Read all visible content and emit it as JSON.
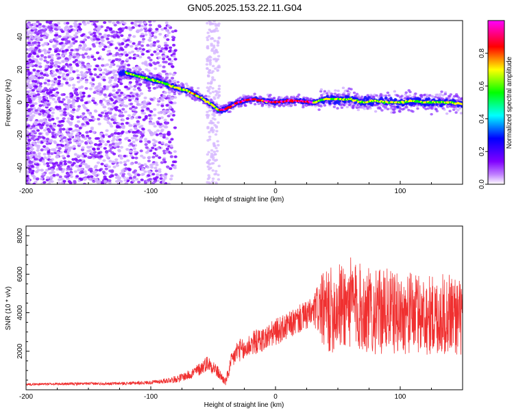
{
  "title": "GN05.2025.153.22.11.G04",
  "colors": {
    "snr_line": "#f03030",
    "axis": "#000000",
    "background": "#ffffff"
  },
  "chart_data": [
    {
      "type": "heatmap",
      "xlabel": "Height of straight line (km)",
      "ylabel": "Frequency (Hz)",
      "xlim": [
        -200,
        150
      ],
      "ylim": [
        -50,
        50
      ],
      "xticks": [
        -200,
        -100,
        0,
        100
      ],
      "yticks": [
        -40,
        -20,
        0,
        20,
        40
      ],
      "colorbar": {
        "label": "Normalized spectral amplitude",
        "range": [
          0,
          1
        ],
        "ticks": [
          "0.0",
          "0.2",
          "0.4",
          "0.6",
          "0.8"
        ],
        "colormap": [
          "#ffffff",
          "#8000ff",
          "#0000ff",
          "#00ffff",
          "#00ff00",
          "#ffff00",
          "#ff0000",
          "#ff00ff"
        ]
      },
      "ridge": {
        "x": [
          -120,
          -110,
          -100,
          -90,
          -80,
          -70,
          -60,
          -50,
          -45,
          -40,
          -30,
          -20,
          -10,
          0,
          10,
          20,
          30,
          40,
          50,
          60,
          70,
          80,
          90,
          100,
          110,
          120,
          130,
          140,
          150
        ],
        "y": [
          18,
          16,
          14,
          12,
          9,
          7,
          3,
          -2,
          -5,
          -4,
          0,
          2,
          1,
          0,
          1,
          1,
          0,
          2,
          2,
          2,
          0,
          1,
          0,
          0,
          1,
          0,
          0,
          0,
          -1
        ]
      }
    },
    {
      "type": "line",
      "xlabel": "Height of straight line (km)",
      "ylabel": "SNR (10 * v/v)",
      "xlim": [
        -200,
        150
      ],
      "ylim": [
        0,
        8500
      ],
      "xticks": [
        -200,
        -100,
        0,
        100
      ],
      "yticks": [
        2000,
        4000,
        6000,
        8000
      ],
      "series": [
        {
          "x": [
            -200,
            -180,
            -160,
            -140,
            -120,
            -100,
            -90,
            -80,
            -70,
            -60,
            -55,
            -50,
            -45,
            -40,
            -35,
            -30,
            -25,
            -20,
            -10,
            0,
            10,
            20,
            30,
            35,
            40,
            50,
            60,
            70,
            80,
            90,
            100,
            110,
            120,
            130,
            140,
            150
          ],
          "y": [
            280,
            300,
            310,
            320,
            330,
            380,
            450,
            550,
            750,
            1100,
            1400,
            1200,
            800,
            400,
            1500,
            2100,
            2000,
            2400,
            2600,
            3000,
            3300,
            3700,
            4000,
            4300,
            4000,
            4300,
            4500,
            4200,
            4000,
            4100,
            3900,
            4000,
            3900,
            3800,
            4000,
            3700
          ],
          "spread": [
            60,
            60,
            70,
            70,
            80,
            100,
            130,
            180,
            250,
            350,
            400,
            400,
            300,
            200,
            500,
            600,
            600,
            650,
            650,
            700,
            700,
            750,
            800,
            1500,
            2200,
            2300,
            2400,
            2300,
            2200,
            2200,
            2100,
            2100,
            2100,
            2100,
            2200,
            2000
          ]
        }
      ]
    }
  ]
}
